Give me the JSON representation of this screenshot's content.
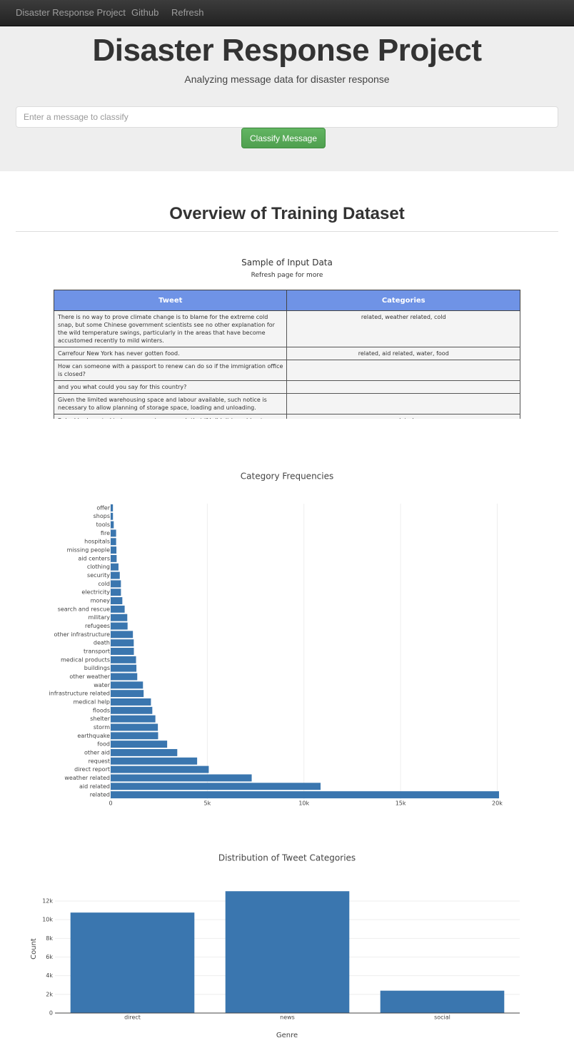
{
  "navbar": {
    "brand": "Disaster Response Project",
    "links": [
      "Github",
      "Refresh"
    ]
  },
  "header": {
    "title": "Disaster Response Project",
    "subtitle": "Analyzing message data for disaster response"
  },
  "form": {
    "placeholder": "Enter a message to classify",
    "button": "Classify Message"
  },
  "section_title": "Overview of Training Dataset",
  "table": {
    "title": "Sample of Input Data",
    "subtitle": "Refresh page for more",
    "columns": [
      "Tweet",
      "Categories"
    ],
    "rows": [
      [
        "There is no way to prove climate change is to blame for the extreme cold snap, but some Chinese government scientists see no other explanation for the wild temperature swings, particularly in the areas that have become accustomed recently to mild winters.",
        "related, weather related, cold"
      ],
      [
        "Carrefour New York has never gotten food.",
        "related, aid related, water, food"
      ],
      [
        "How can someone with a passport to renew can do so if the immigration office is closed?",
        null
      ],
      [
        "and you what could you say for this country?",
        null
      ],
      [
        "Given the limited warehousing space and labour available, such notice is necessary to allow planning of storage space, loading and unloading.",
        null
      ],
      [
        "Baby I had wanted to hear you voice so much that if I didn't i would not",
        "related"
      ]
    ]
  },
  "chart_data": [
    {
      "type": "bar",
      "orientation": "horizontal",
      "title": "Category Frequencies",
      "color": "#3a76af",
      "grid": true,
      "categories": [
        "offer",
        "shops",
        "tools",
        "fire",
        "hospitals",
        "missing people",
        "aid centers",
        "clothing",
        "security",
        "cold",
        "electricity",
        "money",
        "search and rescue",
        "military",
        "refugees",
        "other infrastructure",
        "death",
        "transport",
        "medical products",
        "buildings",
        "other weather",
        "water",
        "infrastructure related",
        "medical help",
        "floods",
        "shelter",
        "storm",
        "earthquake",
        "food",
        "other aid",
        "request",
        "direct report",
        "weather related",
        "aid related",
        "related"
      ],
      "values": [
        118,
        120,
        159,
        282,
        283,
        298,
        309,
        405,
        471,
        530,
        532,
        604,
        724,
        860,
        875,
        1151,
        1194,
        1201,
        1313,
        1333,
        1376,
        1672,
        1705,
        2084,
        2155,
        2314,
        2443,
        2455,
        2923,
        3446,
        4474,
        5075,
        7297,
        10860,
        20093
      ],
      "xlim": [
        0,
        20500
      ],
      "xticks": [
        0,
        {
          "value": 5000,
          "label": "5k"
        },
        {
          "value": 10000,
          "label": "10k"
        },
        {
          "value": 15000,
          "label": "15k"
        },
        {
          "value": 20000,
          "label": "20k"
        }
      ]
    },
    {
      "type": "bar",
      "orientation": "vertical",
      "title": "Distribution of Tweet Categories",
      "color": "#3a76af",
      "grid": true,
      "xlabel": "Genre",
      "ylabel": "Count",
      "categories": [
        "direct",
        "news",
        "social"
      ],
      "values": [
        10766,
        13054,
        2396
      ],
      "ylim": [
        0,
        13760
      ],
      "yticks": [
        0,
        {
          "value": 2000,
          "label": "2k"
        },
        {
          "value": 4000,
          "label": "4k"
        },
        {
          "value": 6000,
          "label": "6k"
        },
        {
          "value": 8000,
          "label": "8k"
        },
        {
          "value": 10000,
          "label": "10k"
        },
        {
          "value": 12000,
          "label": "12k"
        }
      ]
    }
  ]
}
